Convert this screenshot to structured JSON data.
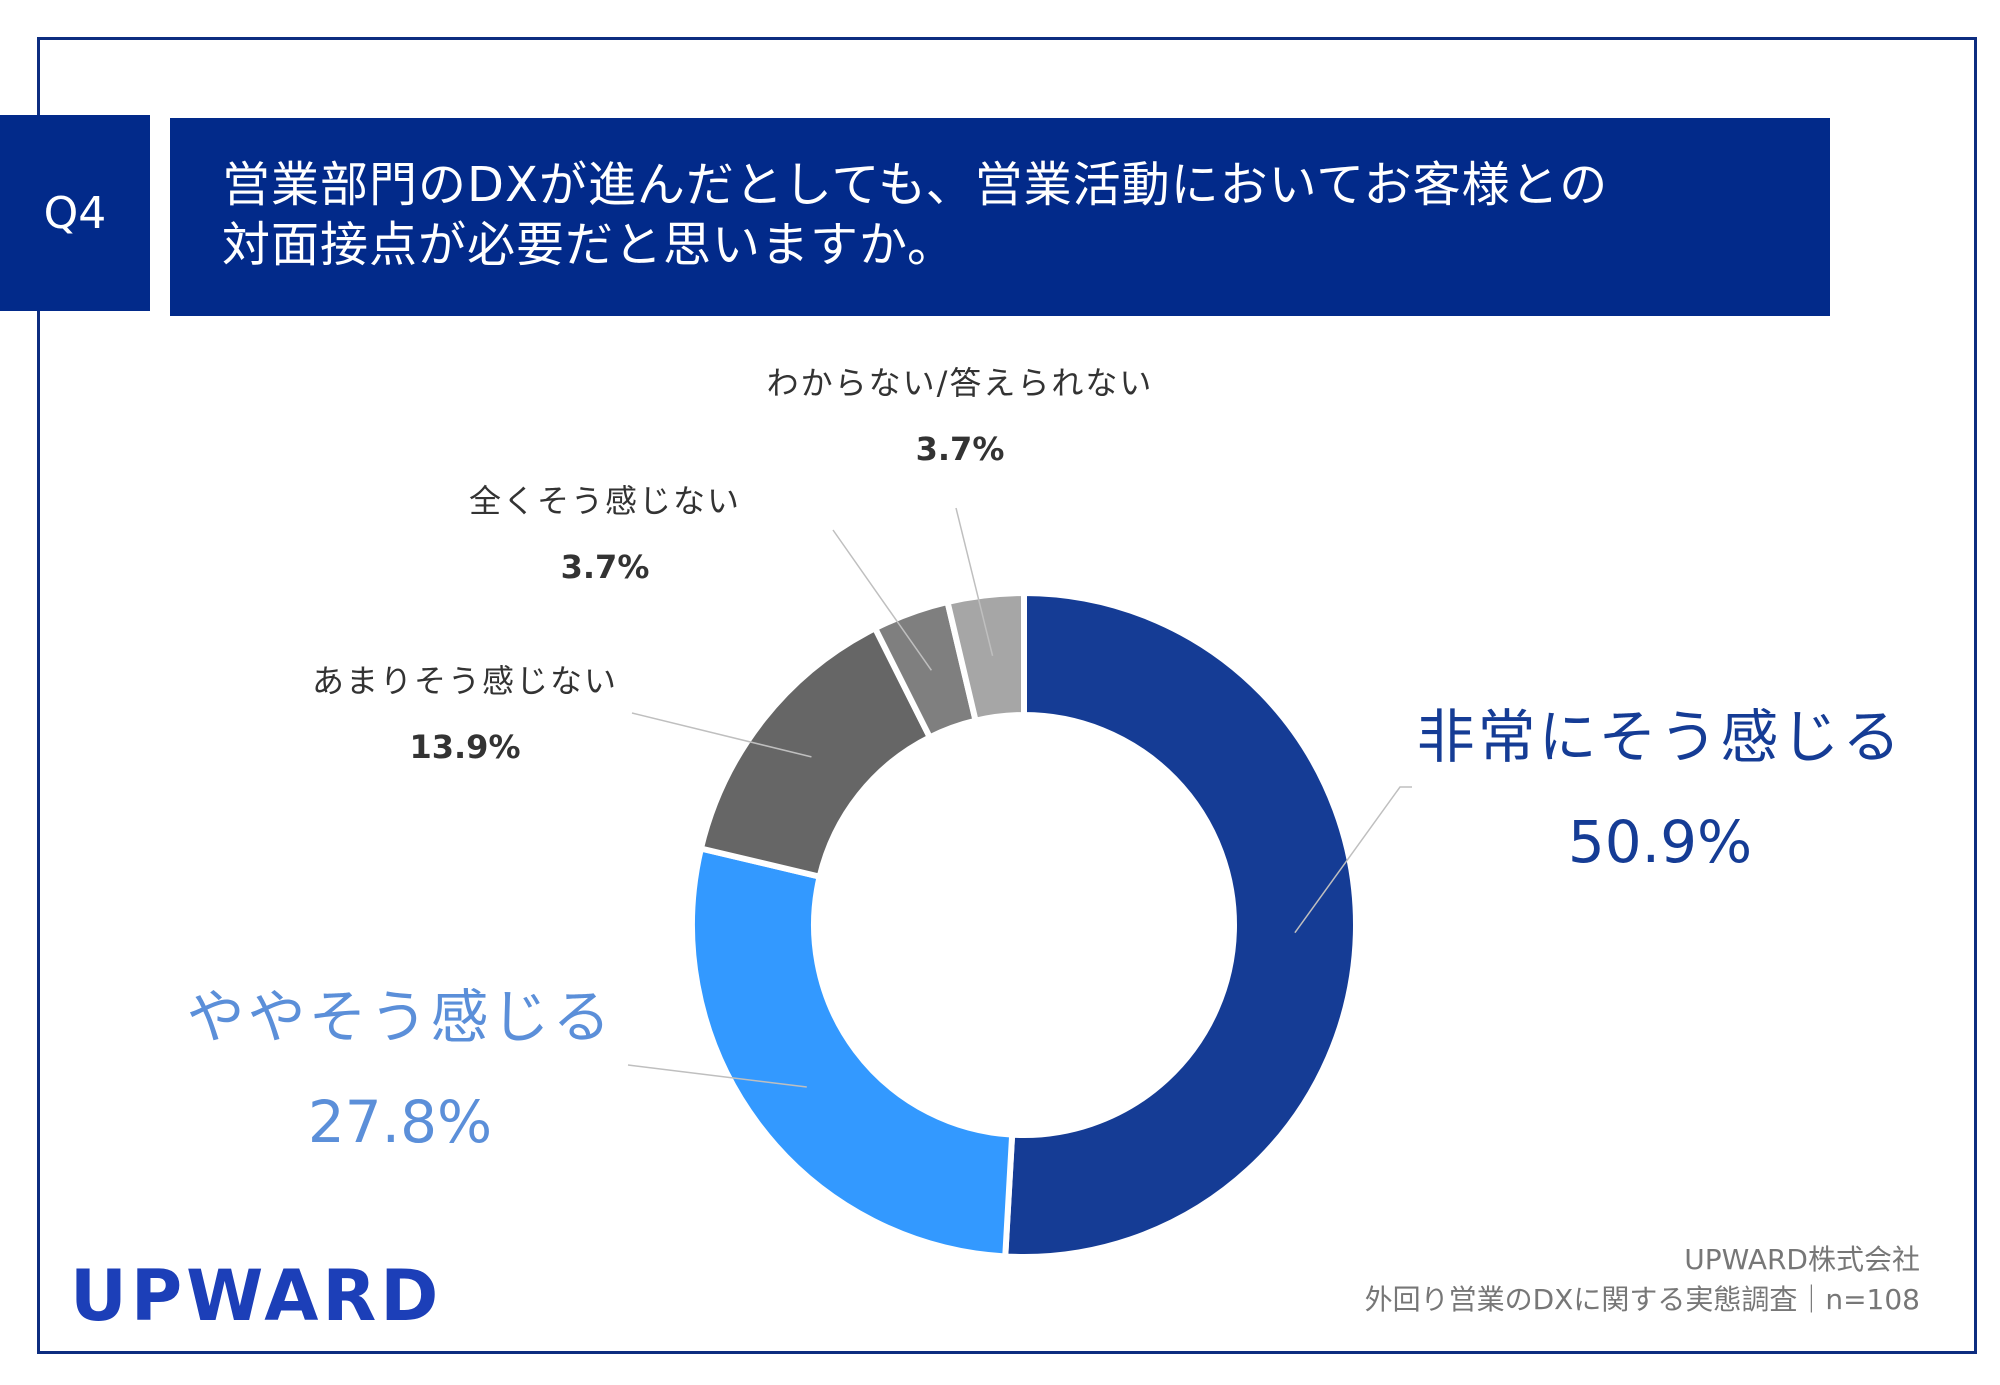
{
  "header": {
    "question_number": "Q4",
    "question_line1": "営業部門のDXが進んだとしても、営業活動においてお客様との",
    "question_line2": "対面接点が必要だと思いますか。"
  },
  "chart_data": {
    "type": "pie",
    "variant": "donut",
    "title": "営業部門のDXが進んだとしても、営業活動においてお客様との対面接点が必要だと思いますか。",
    "n": 108,
    "slices": [
      {
        "label": "非常にそう感じる",
        "value": 50.9,
        "value_label": "50.9%",
        "color": "#153c95"
      },
      {
        "label": "ややそう感じる",
        "value": 27.8,
        "value_label": "27.8%",
        "color": "#3399ff"
      },
      {
        "label": "あまりそう感じない",
        "value": 13.9,
        "value_label": "13.9%",
        "color": "#666666"
      },
      {
        "label": "全くそう感じない",
        "value": 3.7,
        "value_label": "3.7%",
        "color": "#7f7f7f"
      },
      {
        "label": "わからない/答えられない",
        "value": 3.7,
        "value_label": "3.7%",
        "color": "#a6a6a6"
      }
    ],
    "label_colors": {
      "big_0": "#153c95",
      "big_1": "#5b8fd9",
      "small": "#333333"
    }
  },
  "footer": {
    "logo": "UPWARD",
    "company": "UPWARD株式会社",
    "survey": "外回り営業のDXに関する実態調査｜n=108"
  }
}
